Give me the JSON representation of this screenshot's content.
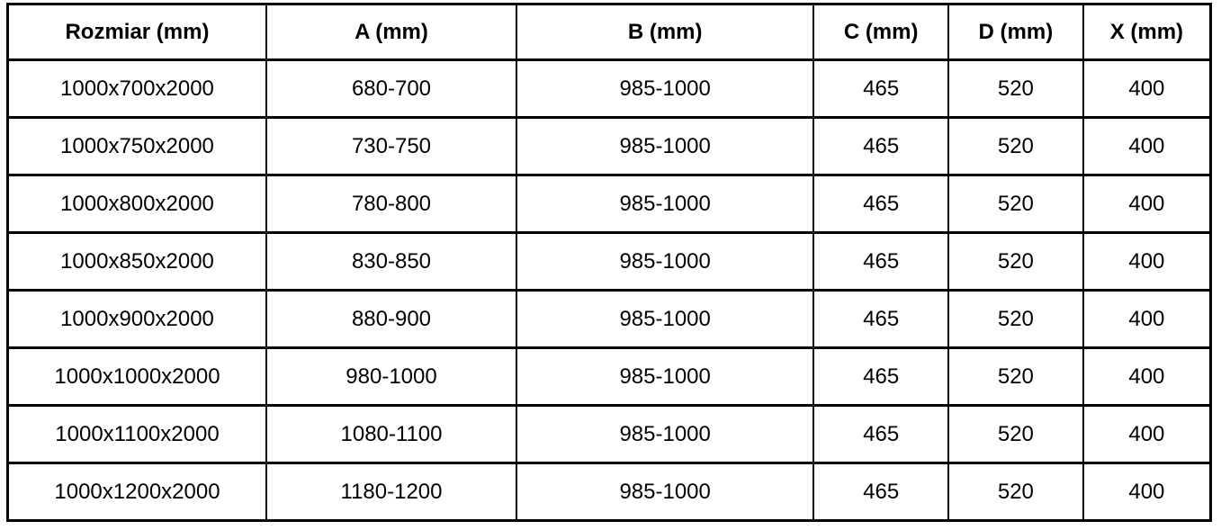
{
  "table": {
    "columns": [
      "Rozmiar (mm)",
      "A (mm)",
      "B (mm)",
      "C (mm)",
      "D (mm)",
      "X (mm)"
    ],
    "rows": [
      [
        "1000x700x2000",
        "680-700",
        "985-1000",
        "465",
        "520",
        "400"
      ],
      [
        "1000x750x2000",
        "730-750",
        "985-1000",
        "465",
        "520",
        "400"
      ],
      [
        "1000x800x2000",
        "780-800",
        "985-1000",
        "465",
        "520",
        "400"
      ],
      [
        "1000x850x2000",
        "830-850",
        "985-1000",
        "465",
        "520",
        "400"
      ],
      [
        "1000x900x2000",
        "880-900",
        "985-1000",
        "465",
        "520",
        "400"
      ],
      [
        "1000x1000x2000",
        "980-1000",
        "985-1000",
        "465",
        "520",
        "400"
      ],
      [
        "1000x1100x2000",
        "1080-1100",
        "985-1000",
        "465",
        "520",
        "400"
      ],
      [
        "1000x1200x2000",
        "1180-1200",
        "985-1000",
        "465",
        "520",
        "400"
      ]
    ]
  },
  "colors": {
    "border": "#000000",
    "text": "#000000",
    "background": "#ffffff"
  }
}
